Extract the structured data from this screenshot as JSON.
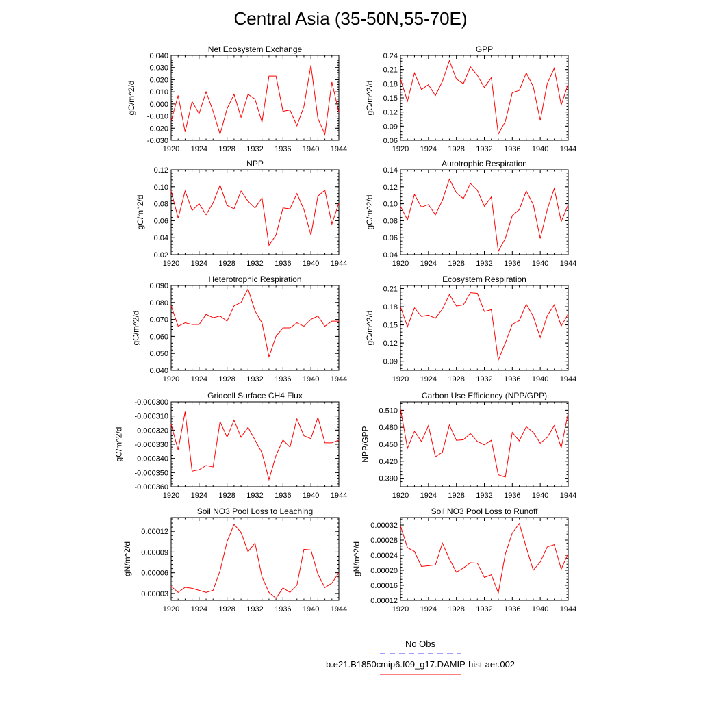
{
  "title": "Central Asia (35-50N,55-70E)",
  "years": [
    1920,
    1921,
    1922,
    1923,
    1924,
    1925,
    1926,
    1927,
    1928,
    1929,
    1930,
    1931,
    1932,
    1933,
    1934,
    1935,
    1936,
    1937,
    1938,
    1939,
    1940,
    1941,
    1942,
    1943,
    1944
  ],
  "x_ticks": [
    1920,
    1924,
    1928,
    1932,
    1936,
    1940,
    1944
  ],
  "legend": [
    {
      "label": "No Obs",
      "color": "#4040ff",
      "dash": "dashed"
    },
    {
      "label": "b.e21.B1850cmip6.f09_g17.DAMIP-hist-aer.002",
      "color": "#ff0000",
      "dash": "solid"
    }
  ],
  "line_color": "#ff0000",
  "chart_data": [
    {
      "type": "line",
      "title": "Net Ecosystem Exchange",
      "ylabel": "gC/m^2/d",
      "ylim": [
        -0.03,
        0.04
      ],
      "yticks": [
        -0.03,
        -0.02,
        -0.01,
        0.0,
        0.01,
        0.02,
        0.03,
        0.04
      ],
      "ytick_labels": [
        "-0.030",
        "-0.020",
        "-0.010",
        "0.000",
        "0.010",
        "0.020",
        "0.030",
        "0.040"
      ],
      "xlim": [
        1920,
        1944
      ],
      "values": [
        -0.014,
        0.007,
        -0.023,
        0.002,
        -0.008,
        0.01,
        -0.006,
        -0.025,
        -0.004,
        0.008,
        -0.011,
        0.008,
        0.004,
        -0.015,
        0.023,
        0.023,
        -0.006,
        -0.005,
        -0.018,
        -0.002,
        0.032,
        -0.012,
        -0.025,
        0.018,
        -0.007
      ]
    },
    {
      "type": "line",
      "title": "GPP",
      "ylabel": "gC/m^2/d",
      "ylim": [
        0.06,
        0.24
      ],
      "yticks": [
        0.06,
        0.09,
        0.12,
        0.15,
        0.18,
        0.21,
        0.24
      ],
      "ytick_labels": [
        "0.06",
        "0.09",
        "0.12",
        "0.15",
        "0.18",
        "0.21",
        "0.24"
      ],
      "xlim": [
        1920,
        1944
      ],
      "values": [
        0.19,
        0.143,
        0.203,
        0.168,
        0.178,
        0.155,
        0.185,
        0.229,
        0.19,
        0.18,
        0.216,
        0.198,
        0.172,
        0.193,
        0.073,
        0.1,
        0.161,
        0.166,
        0.203,
        0.174,
        0.102,
        0.18,
        0.213,
        0.135,
        0.18
      ]
    },
    {
      "type": "line",
      "title": "NPP",
      "ylabel": "gC/m^2/d",
      "ylim": [
        0.02,
        0.12
      ],
      "yticks": [
        0.02,
        0.04,
        0.06,
        0.08,
        0.1,
        0.12
      ],
      "ytick_labels": [
        "0.02",
        "0.04",
        "0.06",
        "0.08",
        "0.10",
        "0.12"
      ],
      "xlim": [
        1920,
        1944
      ],
      "values": [
        0.095,
        0.063,
        0.095,
        0.072,
        0.08,
        0.067,
        0.081,
        0.102,
        0.078,
        0.074,
        0.095,
        0.083,
        0.075,
        0.087,
        0.031,
        0.043,
        0.075,
        0.074,
        0.092,
        0.073,
        0.043,
        0.089,
        0.096,
        0.056,
        0.081
      ]
    },
    {
      "type": "line",
      "title": "Autotrophic Respiration",
      "ylabel": "gC/m^2/d",
      "ylim": [
        0.04,
        0.14
      ],
      "yticks": [
        0.04,
        0.06,
        0.08,
        0.1,
        0.12,
        0.14
      ],
      "ytick_labels": [
        "0.04",
        "0.06",
        "0.08",
        "0.10",
        "0.12",
        "0.14"
      ],
      "xlim": [
        1920,
        1944
      ],
      "values": [
        0.097,
        0.081,
        0.111,
        0.096,
        0.099,
        0.087,
        0.104,
        0.129,
        0.113,
        0.106,
        0.124,
        0.116,
        0.097,
        0.108,
        0.044,
        0.059,
        0.086,
        0.093,
        0.115,
        0.099,
        0.059,
        0.093,
        0.118,
        0.079,
        0.099
      ]
    },
    {
      "type": "line",
      "title": "Heterotrophic Respiration",
      "ylabel": "gC/m^2/d",
      "ylim": [
        0.04,
        0.09
      ],
      "yticks": [
        0.04,
        0.05,
        0.06,
        0.07,
        0.08,
        0.09
      ],
      "ytick_labels": [
        "0.040",
        "0.050",
        "0.060",
        "0.070",
        "0.080",
        "0.090"
      ],
      "xlim": [
        1920,
        1944
      ],
      "values": [
        0.078,
        0.066,
        0.068,
        0.067,
        0.067,
        0.073,
        0.071,
        0.072,
        0.069,
        0.078,
        0.08,
        0.088,
        0.075,
        0.068,
        0.048,
        0.06,
        0.065,
        0.065,
        0.068,
        0.066,
        0.07,
        0.072,
        0.066,
        0.069,
        0.069
      ]
    },
    {
      "type": "line",
      "title": "Ecosystem Respiration",
      "ylabel": "gC/m^2/d",
      "ylim": [
        0.075,
        0.215
      ],
      "yticks": [
        0.09,
        0.12,
        0.15,
        0.18,
        0.21
      ],
      "ytick_labels": [
        "0.09",
        "0.12",
        "0.15",
        "0.18",
        "0.21"
      ],
      "xlim": [
        1920,
        1944
      ],
      "values": [
        0.18,
        0.147,
        0.178,
        0.164,
        0.166,
        0.161,
        0.176,
        0.2,
        0.181,
        0.183,
        0.203,
        0.202,
        0.172,
        0.175,
        0.092,
        0.12,
        0.151,
        0.157,
        0.184,
        0.164,
        0.129,
        0.165,
        0.183,
        0.148,
        0.168
      ]
    },
    {
      "type": "line",
      "title": "Gridcell Surface CH4 Flux",
      "ylabel": "gC/m^2/d",
      "ylim": [
        -0.00036,
        -0.0003
      ],
      "yticks": [
        -0.00036,
        -0.00035,
        -0.00034,
        -0.00033,
        -0.00032,
        -0.00031,
        -0.0003
      ],
      "ytick_labels": [
        "-0.000360",
        "-0.000350",
        "-0.000340",
        "-0.000330",
        "-0.000320",
        "-0.000310",
        "-0.000300"
      ],
      "xlim": [
        1920,
        1944
      ],
      "values": [
        -0.000316,
        -0.000334,
        -0.000307,
        -0.000349,
        -0.000348,
        -0.000345,
        -0.000346,
        -0.000314,
        -0.000325,
        -0.000313,
        -0.000325,
        -0.000318,
        -0.000327,
        -0.000336,
        -0.000355,
        -0.000338,
        -0.000327,
        -0.000332,
        -0.000312,
        -0.000324,
        -0.000326,
        -0.000311,
        -0.000329,
        -0.000329,
        -0.000327
      ]
    },
    {
      "type": "line",
      "title": "Carbon Use Efficiency (NPP/GPP)",
      "ylabel": "NPP/GPP",
      "ylim": [
        0.375,
        0.525
      ],
      "yticks": [
        0.39,
        0.42,
        0.45,
        0.48,
        0.51
      ],
      "ytick_labels": [
        "0.390",
        "0.420",
        "0.450",
        "0.480",
        "0.510"
      ],
      "xlim": [
        1920,
        1944
      ],
      "values": [
        0.513,
        0.443,
        0.473,
        0.455,
        0.483,
        0.428,
        0.436,
        0.484,
        0.457,
        0.458,
        0.469,
        0.455,
        0.449,
        0.457,
        0.396,
        0.392,
        0.471,
        0.456,
        0.481,
        0.471,
        0.452,
        0.462,
        0.483,
        0.444,
        0.506
      ]
    },
    {
      "type": "line",
      "title": "Soil NO3 Pool Loss to Leaching",
      "ylabel": "gN/m^2/d",
      "ylim": [
        2e-05,
        0.00014
      ],
      "yticks": [
        3e-05,
        6e-05,
        9e-05,
        0.00012
      ],
      "ytick_labels": [
        "0.00003",
        "0.00006",
        "0.00009",
        "0.00012"
      ],
      "xlim": [
        1920,
        1944
      ],
      "values": [
        4.05e-05,
        3.15e-05,
        3.9e-05,
        3.75e-05,
        3.45e-05,
        3.15e-05,
        3.45e-05,
        6.3e-05,
        0.000105,
        0.00013,
        0.0001185,
        9.05e-05,
        0.000103,
        5.4e-05,
        3.15e-05,
        2.3e-05,
        3.8e-05,
        3.15e-05,
        4.2e-05,
        9.4e-05,
        9.3e-05,
        5.8e-05,
        3.85e-05,
        4.5e-05,
        6e-05
      ]
    },
    {
      "type": "line",
      "title": "Soil NO3 Pool Loss to Runoff",
      "ylabel": "gN/m^2/d",
      "ylim": [
        0.00012,
        0.00034
      ],
      "yticks": [
        0.00012,
        0.00016,
        0.0002,
        0.00024,
        0.00028,
        0.00032
      ],
      "ytick_labels": [
        "0.00012",
        "0.00016",
        "0.00020",
        "0.00024",
        "0.00028",
        "0.00032"
      ],
      "xlim": [
        1920,
        1944
      ],
      "values": [
        0.000318,
        0.00026,
        0.00025,
        0.00021,
        0.000212,
        0.000214,
        0.000272,
        0.00023,
        0.000195,
        0.000206,
        0.00022,
        0.000219,
        0.000181,
        0.000188,
        0.00014,
        0.000243,
        0.000299,
        0.000324,
        0.000261,
        0.0002,
        0.000222,
        0.000262,
        0.000268,
        0.000203,
        0.000245
      ]
    }
  ]
}
